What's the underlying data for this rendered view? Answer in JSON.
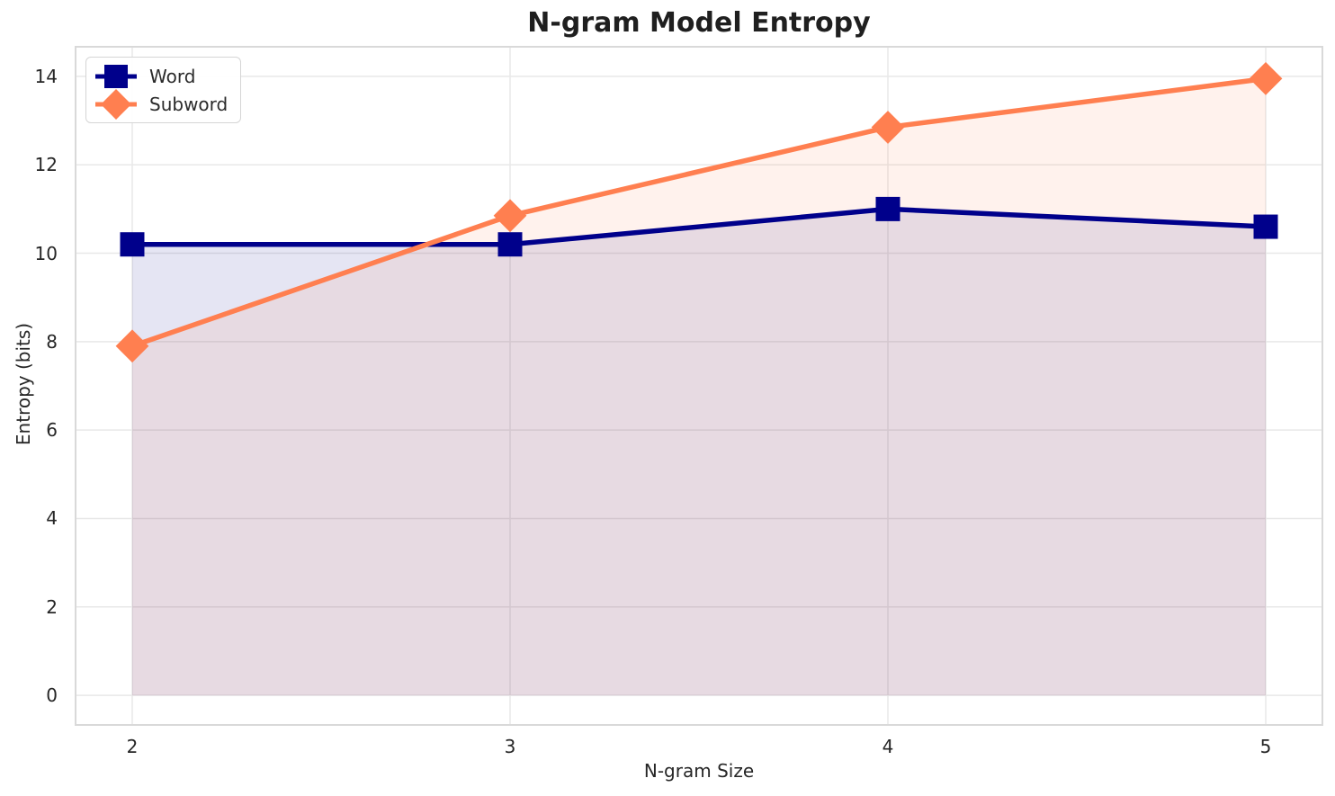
{
  "chart_data": {
    "type": "line",
    "title": "N-gram Model Entropy",
    "xlabel": "N-gram Size",
    "ylabel": "Entropy (bits)",
    "x": [
      2,
      3,
      4,
      5
    ],
    "xticks": [
      "2",
      "3",
      "4",
      "5"
    ],
    "yticks": [
      "0",
      "2",
      "4",
      "6",
      "8",
      "10",
      "12",
      "14"
    ],
    "xtick_values": [
      2,
      3,
      4,
      5
    ],
    "ytick_values": [
      0,
      2,
      4,
      6,
      8,
      10,
      12,
      14
    ],
    "xlim": [
      1.85,
      5.15
    ],
    "ylim": [
      -0.67,
      14.67
    ],
    "grid": true,
    "legend_position": "upper-left",
    "area_baseline": 0,
    "series": [
      {
        "name": "Word",
        "marker": "square",
        "color": "#00008b",
        "fill_opacity": 0.1,
        "values": [
          10.2,
          10.2,
          11.0,
          10.6
        ]
      },
      {
        "name": "Subword",
        "marker": "diamond",
        "color": "#ff7f50",
        "fill_opacity": 0.1,
        "values": [
          7.9,
          10.85,
          12.85,
          13.95
        ]
      }
    ]
  },
  "style": {
    "grid_color": "#e8e8e8",
    "spine_color": "#d9d9d9",
    "background": "#ffffff"
  }
}
